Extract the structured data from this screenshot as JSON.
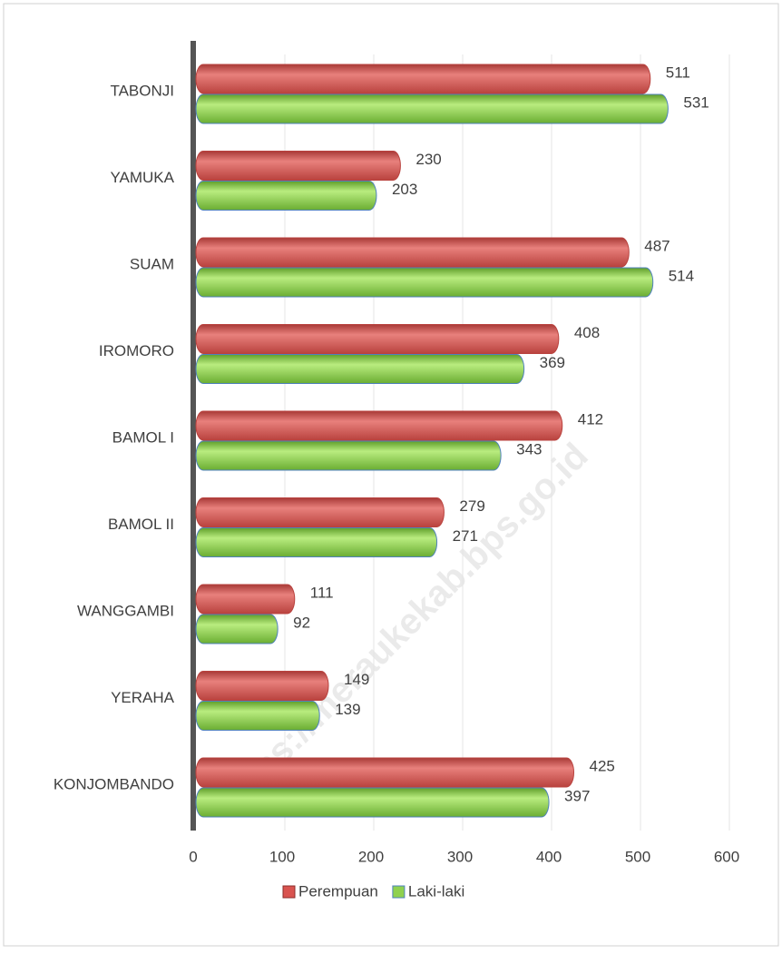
{
  "chart_data": {
    "type": "bar",
    "orientation": "horizontal",
    "categories": [
      "TABONJI",
      "YAMUKA",
      "SUAM",
      "IROMORO",
      "BAMOL I",
      "BAMOL II",
      "WANGGAMBI",
      "YERAHA",
      "KONJOMBANDO"
    ],
    "series": [
      {
        "name": "Perempuan",
        "color": "#d9534f",
        "values": [
          511,
          230,
          487,
          408,
          412,
          279,
          111,
          149,
          425
        ]
      },
      {
        "name": "Laki-laki",
        "color": "#8fd14f",
        "values": [
          531,
          203,
          514,
          369,
          343,
          271,
          92,
          139,
          397
        ]
      }
    ],
    "xlim": [
      0,
      600
    ],
    "xticks": [
      0,
      100,
      200,
      300,
      400,
      500,
      600
    ],
    "grid": true,
    "legend": "bottom",
    "watermark": "https://meraukekab.bps.go.id"
  }
}
